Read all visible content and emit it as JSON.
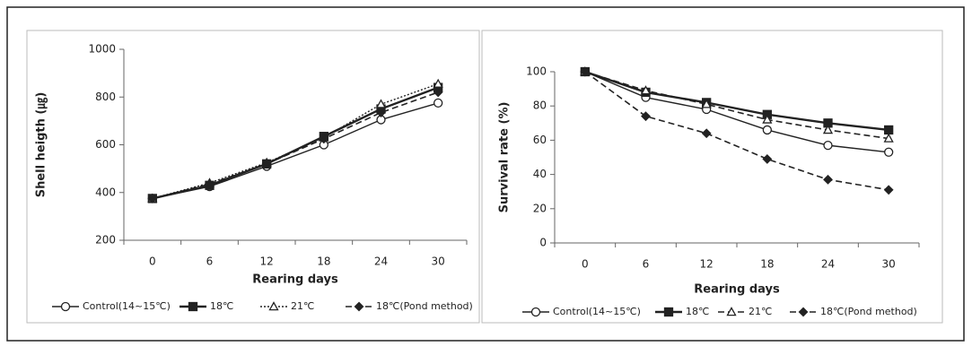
{
  "chart_data": [
    {
      "type": "line",
      "y_label": "Shell heigth (㎍)",
      "x_label": "Rearing days",
      "categories": [
        "0",
        "6",
        "12",
        "18",
        "24",
        "30"
      ],
      "ylim": [
        200,
        1000
      ],
      "yticks": [
        200,
        400,
        600,
        800,
        1000
      ],
      "series": [
        {
          "name": "Control(14~15℃)",
          "color": "#222222",
          "dash": "solid",
          "marker": "circle",
          "values": [
            375,
            425,
            510,
            600,
            705,
            775
          ]
        },
        {
          "name": "18℃",
          "color": "#222222",
          "dash": "bold",
          "marker": "square",
          "values": [
            375,
            430,
            520,
            635,
            750,
            840
          ]
        },
        {
          "name": "21℃",
          "color": "#222222",
          "dash": "dotted",
          "marker": "triangle",
          "values": [
            375,
            440,
            525,
            630,
            770,
            855
          ]
        },
        {
          "name": "18℃(Pond method)",
          "color": "#222222",
          "dash": "dashed",
          "marker": "diamond",
          "values": [
            375,
            435,
            520,
            625,
            735,
            820
          ]
        }
      ]
    },
    {
      "type": "line",
      "y_label": "Survival rate (%)",
      "x_label": "Rearing days",
      "categories": [
        "0",
        "6",
        "12",
        "18",
        "24",
        "30"
      ],
      "ylim": [
        0,
        100
      ],
      "yticks": [
        0,
        20,
        40,
        60,
        80,
        100
      ],
      "series": [
        {
          "name": "Control(14~15℃)",
          "color": "#222222",
          "dash": "solid",
          "marker": "circle",
          "values": [
            100,
            85,
            78,
            66,
            57,
            53
          ]
        },
        {
          "name": "18℃",
          "color": "#222222",
          "dash": "bold",
          "marker": "square",
          "values": [
            100,
            88,
            82,
            75,
            70,
            66
          ]
        },
        {
          "name": "21℃",
          "color": "#222222",
          "dash": "dashed",
          "marker": "triangle",
          "values": [
            100,
            89,
            81,
            72,
            66,
            61
          ]
        },
        {
          "name": "18℃(Pond method)",
          "color": "#222222",
          "dash": "dashed",
          "marker": "diamond",
          "values": [
            100,
            74,
            64,
            49,
            37,
            31
          ]
        }
      ]
    }
  ]
}
